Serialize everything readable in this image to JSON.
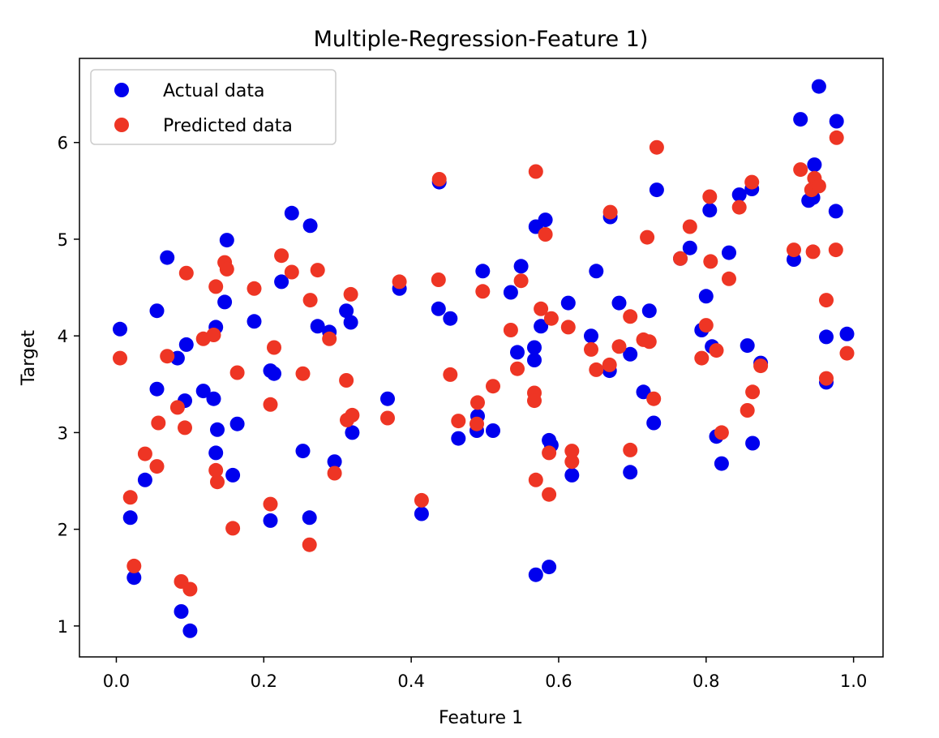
{
  "chart_data": {
    "type": "scatter",
    "title": "Multiple-Regression-Feature 1)",
    "xlabel": "Feature 1",
    "ylabel": "Target",
    "xlim": [
      -0.05,
      1.04
    ],
    "ylim": [
      0.68,
      6.87
    ],
    "xticks": [
      0.0,
      0.2,
      0.4,
      0.6,
      0.8,
      1.0
    ],
    "xtick_labels": [
      "0.0",
      "0.2",
      "0.4",
      "0.6",
      "0.8",
      "1.0"
    ],
    "yticks": [
      1,
      2,
      3,
      4,
      5,
      6
    ],
    "ytick_labels": [
      "1",
      "2",
      "3",
      "4",
      "5",
      "6"
    ],
    "grid": false,
    "legend_position": "top-left",
    "series": [
      {
        "name": "Actual data",
        "color": "#0000ee",
        "points": [
          [
            0.005,
            4.07
          ],
          [
            0.019,
            2.12
          ],
          [
            0.024,
            1.5
          ],
          [
            0.039,
            2.51
          ],
          [
            0.055,
            4.26
          ],
          [
            0.055,
            3.45
          ],
          [
            0.069,
            4.81
          ],
          [
            0.083,
            3.77
          ],
          [
            0.088,
            1.15
          ],
          [
            0.093,
            3.33
          ],
          [
            0.095,
            3.91
          ],
          [
            0.1,
            0.95
          ],
          [
            0.118,
            3.43
          ],
          [
            0.132,
            3.35
          ],
          [
            0.135,
            4.09
          ],
          [
            0.135,
            2.79
          ],
          [
            0.137,
            3.03
          ],
          [
            0.147,
            4.35
          ],
          [
            0.15,
            4.99
          ],
          [
            0.158,
            2.56
          ],
          [
            0.164,
            3.09
          ],
          [
            0.187,
            4.15
          ],
          [
            0.209,
            3.64
          ],
          [
            0.209,
            2.09
          ],
          [
            0.214,
            3.61
          ],
          [
            0.224,
            4.56
          ],
          [
            0.238,
            5.27
          ],
          [
            0.253,
            2.81
          ],
          [
            0.263,
            5.14
          ],
          [
            0.262,
            2.12
          ],
          [
            0.273,
            4.1
          ],
          [
            0.289,
            4.04
          ],
          [
            0.296,
            2.7
          ],
          [
            0.312,
            4.26
          ],
          [
            0.318,
            4.14
          ],
          [
            0.32,
            3.0
          ],
          [
            0.368,
            3.35
          ],
          [
            0.384,
            4.49
          ],
          [
            0.414,
            2.16
          ],
          [
            0.438,
            5.59
          ],
          [
            0.437,
            4.28
          ],
          [
            0.453,
            4.18
          ],
          [
            0.464,
            2.94
          ],
          [
            0.489,
            3.02
          ],
          [
            0.49,
            3.17
          ],
          [
            0.497,
            4.67
          ],
          [
            0.511,
            3.02
          ],
          [
            0.535,
            4.45
          ],
          [
            0.544,
            3.83
          ],
          [
            0.549,
            4.72
          ],
          [
            0.567,
            3.88
          ],
          [
            0.567,
            3.75
          ],
          [
            0.569,
            5.13
          ],
          [
            0.569,
            1.53
          ],
          [
            0.576,
            4.1
          ],
          [
            0.582,
            5.2
          ],
          [
            0.587,
            2.92
          ],
          [
            0.587,
            1.61
          ],
          [
            0.59,
            2.87
          ],
          [
            0.613,
            4.34
          ],
          [
            0.618,
            2.56
          ],
          [
            0.644,
            4.0
          ],
          [
            0.651,
            4.67
          ],
          [
            0.669,
            3.64
          ],
          [
            0.67,
            5.23
          ],
          [
            0.682,
            4.34
          ],
          [
            0.697,
            3.81
          ],
          [
            0.697,
            2.59
          ],
          [
            0.715,
            3.42
          ],
          [
            0.723,
            4.26
          ],
          [
            0.729,
            3.1
          ],
          [
            0.733,
            5.51
          ],
          [
            0.765,
            4.8
          ],
          [
            0.778,
            4.91
          ],
          [
            0.794,
            4.06
          ],
          [
            0.8,
            4.41
          ],
          [
            0.805,
            5.3
          ],
          [
            0.808,
            3.89
          ],
          [
            0.814,
            2.96
          ],
          [
            0.821,
            2.68
          ],
          [
            0.831,
            4.86
          ],
          [
            0.845,
            5.46
          ],
          [
            0.856,
            3.9
          ],
          [
            0.862,
            5.52
          ],
          [
            0.863,
            2.89
          ],
          [
            0.874,
            3.72
          ],
          [
            0.919,
            4.79
          ],
          [
            0.928,
            6.24
          ],
          [
            0.939,
            5.4
          ],
          [
            0.945,
            5.43
          ],
          [
            0.947,
            5.77
          ],
          [
            0.953,
            6.58
          ],
          [
            0.963,
            3.52
          ],
          [
            0.963,
            3.99
          ],
          [
            0.976,
            5.29
          ],
          [
            0.977,
            6.22
          ],
          [
            0.991,
            4.02
          ]
        ]
      },
      {
        "name": "Predicted data",
        "color": "#ee3524",
        "points": [
          [
            0.005,
            3.77
          ],
          [
            0.019,
            2.33
          ],
          [
            0.024,
            1.62
          ],
          [
            0.039,
            2.78
          ],
          [
            0.055,
            2.65
          ],
          [
            0.057,
            3.1
          ],
          [
            0.069,
            3.79
          ],
          [
            0.083,
            3.26
          ],
          [
            0.088,
            1.46
          ],
          [
            0.093,
            3.05
          ],
          [
            0.095,
            4.65
          ],
          [
            0.1,
            1.38
          ],
          [
            0.118,
            3.97
          ],
          [
            0.132,
            4.01
          ],
          [
            0.135,
            4.51
          ],
          [
            0.135,
            2.61
          ],
          [
            0.137,
            2.49
          ],
          [
            0.147,
            4.76
          ],
          [
            0.15,
            4.69
          ],
          [
            0.158,
            2.01
          ],
          [
            0.164,
            3.62
          ],
          [
            0.187,
            4.49
          ],
          [
            0.209,
            3.29
          ],
          [
            0.209,
            2.26
          ],
          [
            0.214,
            3.88
          ],
          [
            0.224,
            4.83
          ],
          [
            0.238,
            4.66
          ],
          [
            0.253,
            3.61
          ],
          [
            0.263,
            4.37
          ],
          [
            0.262,
            1.84
          ],
          [
            0.273,
            4.68
          ],
          [
            0.289,
            3.97
          ],
          [
            0.296,
            2.58
          ],
          [
            0.312,
            3.54
          ],
          [
            0.313,
            3.13
          ],
          [
            0.318,
            4.43
          ],
          [
            0.32,
            3.18
          ],
          [
            0.368,
            3.15
          ],
          [
            0.384,
            4.56
          ],
          [
            0.414,
            2.3
          ],
          [
            0.438,
            5.62
          ],
          [
            0.437,
            4.58
          ],
          [
            0.453,
            3.6
          ],
          [
            0.464,
            3.12
          ],
          [
            0.489,
            3.09
          ],
          [
            0.49,
            3.31
          ],
          [
            0.497,
            4.46
          ],
          [
            0.511,
            3.48
          ],
          [
            0.535,
            4.06
          ],
          [
            0.544,
            3.66
          ],
          [
            0.549,
            4.57
          ],
          [
            0.567,
            3.41
          ],
          [
            0.567,
            3.33
          ],
          [
            0.569,
            5.7
          ],
          [
            0.569,
            2.51
          ],
          [
            0.576,
            4.28
          ],
          [
            0.582,
            5.05
          ],
          [
            0.587,
            2.79
          ],
          [
            0.587,
            2.36
          ],
          [
            0.59,
            4.18
          ],
          [
            0.613,
            4.09
          ],
          [
            0.618,
            2.7
          ],
          [
            0.618,
            2.81
          ],
          [
            0.644,
            3.86
          ],
          [
            0.651,
            3.65
          ],
          [
            0.669,
            3.7
          ],
          [
            0.67,
            5.28
          ],
          [
            0.682,
            3.89
          ],
          [
            0.697,
            4.2
          ],
          [
            0.697,
            2.82
          ],
          [
            0.715,
            3.96
          ],
          [
            0.72,
            5.02
          ],
          [
            0.723,
            3.94
          ],
          [
            0.729,
            3.35
          ],
          [
            0.733,
            5.95
          ],
          [
            0.765,
            4.8
          ],
          [
            0.778,
            5.13
          ],
          [
            0.794,
            3.77
          ],
          [
            0.8,
            4.11
          ],
          [
            0.805,
            5.44
          ],
          [
            0.806,
            4.77
          ],
          [
            0.814,
            3.85
          ],
          [
            0.821,
            3.0
          ],
          [
            0.831,
            4.59
          ],
          [
            0.845,
            5.33
          ],
          [
            0.856,
            3.23
          ],
          [
            0.862,
            5.59
          ],
          [
            0.863,
            3.42
          ],
          [
            0.874,
            3.69
          ],
          [
            0.919,
            4.89
          ],
          [
            0.928,
            5.72
          ],
          [
            0.943,
            5.51
          ],
          [
            0.945,
            4.87
          ],
          [
            0.947,
            5.63
          ],
          [
            0.953,
            5.55
          ],
          [
            0.963,
            3.56
          ],
          [
            0.963,
            4.37
          ],
          [
            0.976,
            4.89
          ],
          [
            0.977,
            6.05
          ],
          [
            0.991,
            3.82
          ]
        ]
      }
    ]
  }
}
